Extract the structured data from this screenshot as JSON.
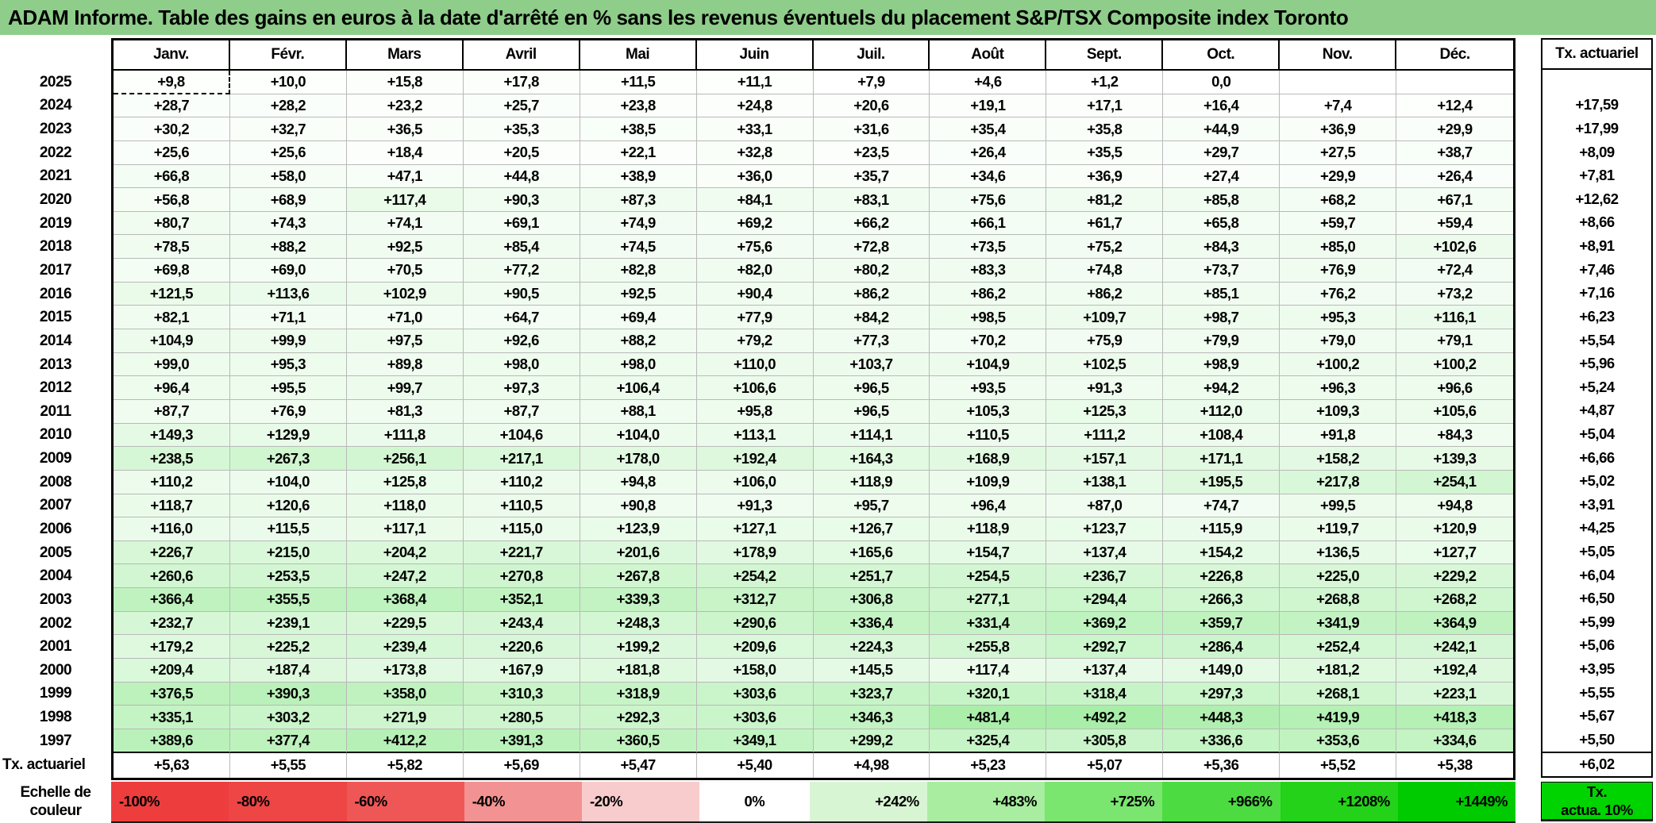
{
  "title": "ADAM Informe. Table des gains en euros à la date d'arrêté en % sans les revenus éventuels du placement S&P/TSX Composite index Toronto",
  "table": {
    "month_headers": [
      "Janv.",
      "Févr.",
      "Mars",
      "Avril",
      "Mai",
      "Juin",
      "Juil.",
      "Août",
      "Sept.",
      "Oct.",
      "Nov.",
      "Déc."
    ],
    "right_column_header": "Tx. actuariel",
    "bottom_row_label": "Tx. actuariel",
    "rows": [
      {
        "year": "2025",
        "values": [
          "+9,8",
          "+10,0",
          "+15,8",
          "+17,8",
          "+11,5",
          "+11,1",
          "+7,9",
          "+4,6",
          "+1,2",
          "0,0",
          "",
          ""
        ],
        "tx": ""
      },
      {
        "year": "2024",
        "values": [
          "+28,7",
          "+28,2",
          "+23,2",
          "+25,7",
          "+23,8",
          "+24,8",
          "+20,6",
          "+19,1",
          "+17,1",
          "+16,4",
          "+7,4",
          "+12,4"
        ],
        "tx": "+17,59"
      },
      {
        "year": "2023",
        "values": [
          "+30,2",
          "+32,7",
          "+36,5",
          "+35,3",
          "+38,5",
          "+33,1",
          "+31,6",
          "+35,4",
          "+35,8",
          "+44,9",
          "+36,9",
          "+29,9"
        ],
        "tx": "+17,99"
      },
      {
        "year": "2022",
        "values": [
          "+25,6",
          "+25,6",
          "+18,4",
          "+20,5",
          "+22,1",
          "+32,8",
          "+23,5",
          "+26,4",
          "+35,5",
          "+29,7",
          "+27,5",
          "+38,7"
        ],
        "tx": "+8,09"
      },
      {
        "year": "2021",
        "values": [
          "+66,8",
          "+58,0",
          "+47,1",
          "+44,8",
          "+38,9",
          "+36,0",
          "+35,7",
          "+34,6",
          "+36,9",
          "+27,4",
          "+29,9",
          "+26,4"
        ],
        "tx": "+7,81"
      },
      {
        "year": "2020",
        "values": [
          "+56,8",
          "+68,9",
          "+117,4",
          "+90,3",
          "+87,3",
          "+84,1",
          "+83,1",
          "+75,6",
          "+81,2",
          "+85,8",
          "+68,2",
          "+67,1"
        ],
        "tx": "+12,62"
      },
      {
        "year": "2019",
        "values": [
          "+80,7",
          "+74,3",
          "+74,1",
          "+69,1",
          "+74,9",
          "+69,2",
          "+66,2",
          "+66,1",
          "+61,7",
          "+65,8",
          "+59,7",
          "+59,4"
        ],
        "tx": "+8,66"
      },
      {
        "year": "2018",
        "values": [
          "+78,5",
          "+88,2",
          "+92,5",
          "+85,4",
          "+74,5",
          "+75,6",
          "+72,8",
          "+73,5",
          "+75,2",
          "+84,3",
          "+85,0",
          "+102,6"
        ],
        "tx": "+8,91"
      },
      {
        "year": "2017",
        "values": [
          "+69,8",
          "+69,0",
          "+70,5",
          "+77,2",
          "+82,8",
          "+82,0",
          "+80,2",
          "+83,3",
          "+74,8",
          "+73,7",
          "+76,9",
          "+72,4"
        ],
        "tx": "+7,46"
      },
      {
        "year": "2016",
        "values": [
          "+121,5",
          "+113,6",
          "+102,9",
          "+90,5",
          "+92,5",
          "+90,4",
          "+86,2",
          "+86,2",
          "+86,2",
          "+85,1",
          "+76,2",
          "+73,2"
        ],
        "tx": "+7,16"
      },
      {
        "year": "2015",
        "values": [
          "+82,1",
          "+71,1",
          "+71,0",
          "+64,7",
          "+69,4",
          "+77,9",
          "+84,2",
          "+98,5",
          "+109,7",
          "+98,7",
          "+95,3",
          "+116,1"
        ],
        "tx": "+6,23"
      },
      {
        "year": "2014",
        "values": [
          "+104,9",
          "+99,9",
          "+97,5",
          "+92,6",
          "+88,2",
          "+79,2",
          "+77,3",
          "+70,2",
          "+75,9",
          "+79,9",
          "+79,0",
          "+79,1"
        ],
        "tx": "+5,54"
      },
      {
        "year": "2013",
        "values": [
          "+99,0",
          "+95,3",
          "+89,8",
          "+98,0",
          "+98,0",
          "+110,0",
          "+103,7",
          "+104,9",
          "+102,5",
          "+98,9",
          "+100,2",
          "+100,2"
        ],
        "tx": "+5,96"
      },
      {
        "year": "2012",
        "values": [
          "+96,4",
          "+95,5",
          "+99,7",
          "+97,3",
          "+106,4",
          "+106,6",
          "+96,5",
          "+93,5",
          "+91,3",
          "+94,2",
          "+96,3",
          "+96,6"
        ],
        "tx": "+5,24"
      },
      {
        "year": "2011",
        "values": [
          "+87,7",
          "+76,9",
          "+81,3",
          "+87,7",
          "+88,1",
          "+95,8",
          "+96,5",
          "+105,3",
          "+125,3",
          "+112,0",
          "+109,3",
          "+105,6"
        ],
        "tx": "+4,87"
      },
      {
        "year": "2010",
        "values": [
          "+149,3",
          "+129,9",
          "+111,8",
          "+104,6",
          "+104,0",
          "+113,1",
          "+114,1",
          "+110,5",
          "+111,2",
          "+108,4",
          "+91,8",
          "+84,3"
        ],
        "tx": "+5,04"
      },
      {
        "year": "2009",
        "values": [
          "+238,5",
          "+267,3",
          "+256,1",
          "+217,1",
          "+178,0",
          "+192,4",
          "+164,3",
          "+168,9",
          "+157,1",
          "+171,1",
          "+158,2",
          "+139,3"
        ],
        "tx": "+6,66"
      },
      {
        "year": "2008",
        "values": [
          "+110,2",
          "+104,0",
          "+125,8",
          "+110,2",
          "+94,8",
          "+106,0",
          "+118,9",
          "+109,9",
          "+138,1",
          "+195,5",
          "+217,8",
          "+254,1"
        ],
        "tx": "+5,02"
      },
      {
        "year": "2007",
        "values": [
          "+118,7",
          "+120,6",
          "+118,0",
          "+110,5",
          "+90,8",
          "+91,3",
          "+95,7",
          "+96,4",
          "+87,0",
          "+74,7",
          "+99,5",
          "+94,8"
        ],
        "tx": "+3,91"
      },
      {
        "year": "2006",
        "values": [
          "+116,0",
          "+115,5",
          "+117,1",
          "+115,0",
          "+123,9",
          "+127,1",
          "+126,7",
          "+118,9",
          "+123,7",
          "+115,9",
          "+119,7",
          "+120,9"
        ],
        "tx": "+4,25"
      },
      {
        "year": "2005",
        "values": [
          "+226,7",
          "+215,0",
          "+204,2",
          "+221,7",
          "+201,6",
          "+178,9",
          "+165,6",
          "+154,7",
          "+137,4",
          "+154,2",
          "+136,5",
          "+127,7"
        ],
        "tx": "+5,05"
      },
      {
        "year": "2004",
        "values": [
          "+260,6",
          "+253,5",
          "+247,2",
          "+270,8",
          "+267,8",
          "+254,2",
          "+251,7",
          "+254,5",
          "+236,7",
          "+226,8",
          "+225,0",
          "+229,2"
        ],
        "tx": "+6,04"
      },
      {
        "year": "2003",
        "values": [
          "+366,4",
          "+355,5",
          "+368,4",
          "+352,1",
          "+339,3",
          "+312,7",
          "+306,8",
          "+277,1",
          "+294,4",
          "+266,3",
          "+268,8",
          "+268,2"
        ],
        "tx": "+6,50"
      },
      {
        "year": "2002",
        "values": [
          "+232,7",
          "+239,1",
          "+229,5",
          "+243,4",
          "+248,3",
          "+290,6",
          "+336,4",
          "+331,4",
          "+369,2",
          "+359,7",
          "+341,9",
          "+364,9"
        ],
        "tx": "+5,99"
      },
      {
        "year": "2001",
        "values": [
          "+179,2",
          "+225,2",
          "+239,4",
          "+220,6",
          "+199,2",
          "+209,6",
          "+224,3",
          "+255,8",
          "+292,7",
          "+286,4",
          "+252,4",
          "+242,1"
        ],
        "tx": "+5,06"
      },
      {
        "year": "2000",
        "values": [
          "+209,4",
          "+187,4",
          "+173,8",
          "+167,9",
          "+181,8",
          "+158,0",
          "+145,5",
          "+117,4",
          "+137,4",
          "+149,0",
          "+181,2",
          "+192,4"
        ],
        "tx": "+3,95"
      },
      {
        "year": "1999",
        "values": [
          "+376,5",
          "+390,3",
          "+358,0",
          "+310,3",
          "+318,9",
          "+303,6",
          "+323,7",
          "+320,1",
          "+318,4",
          "+297,3",
          "+268,1",
          "+223,1"
        ],
        "tx": "+5,55"
      },
      {
        "year": "1998",
        "values": [
          "+335,1",
          "+303,2",
          "+271,9",
          "+280,5",
          "+292,3",
          "+303,6",
          "+346,3",
          "+481,4",
          "+492,2",
          "+448,3",
          "+419,9",
          "+418,3"
        ],
        "tx": "+5,67"
      },
      {
        "year": "1997",
        "values": [
          "+389,6",
          "+377,4",
          "+412,2",
          "+391,3",
          "+360,5",
          "+349,1",
          "+299,2",
          "+325,4",
          "+305,8",
          "+336,6",
          "+353,6",
          "+334,6"
        ],
        "tx": "+5,50"
      }
    ],
    "bottom_row": {
      "values": [
        "+5,63",
        "+5,55",
        "+5,82",
        "+5,69",
        "+5,47",
        "+5,40",
        "+4,98",
        "+5,23",
        "+5,07",
        "+5,36",
        "+5,52",
        "+5,38"
      ],
      "tx": "+6,02"
    },
    "selected_cell": {
      "row_index": 0,
      "col_index": 0
    }
  },
  "legend": {
    "label_line1": "Echelle de",
    "label_line2": "couleur",
    "stops": [
      {
        "label": "-100%",
        "color": "#ee3d3d"
      },
      {
        "label": "-80%",
        "color": "#ee4545"
      },
      {
        "label": "-60%",
        "color": "#ef5757"
      },
      {
        "label": "-40%",
        "color": "#f29292"
      },
      {
        "label": "-20%",
        "color": "#f8cccc"
      },
      {
        "label": "0%",
        "color": "#ffffff"
      },
      {
        "label": "+242%",
        "color": "#d8f5d3"
      },
      {
        "label": "+483%",
        "color": "#a8eda0"
      },
      {
        "label": "+725%",
        "color": "#7ae56f"
      },
      {
        "label": "+966%",
        "color": "#4cdc41"
      },
      {
        "label": "+1208%",
        "color": "#23d219"
      },
      {
        "label": "+1449%",
        "color": "#00ca00"
      }
    ],
    "right_box": {
      "line1": "Tx.",
      "line2": "actua. 10%",
      "color": "#00d400"
    }
  },
  "colors": {
    "title_bg": "#8ecd8a",
    "grid_line": "#b9b9b9",
    "frame": "#000000",
    "positive_scale_max_color": "#00cc00",
    "positive_scale_max_value": 1449
  }
}
